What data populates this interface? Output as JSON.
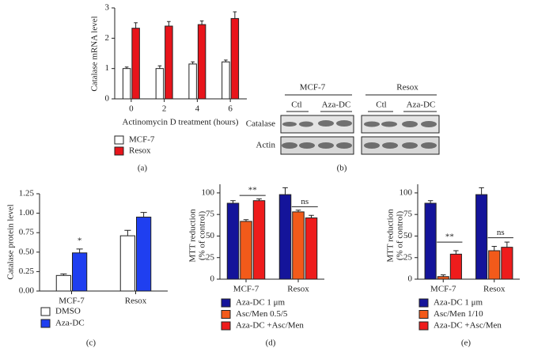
{
  "chart_data": [
    {
      "type": "bar",
      "panel_label": "(a)",
      "ylabel": "Catalase mRNA level",
      "xlabel": "Actinomycin D treatment (hours)",
      "categories": [
        "0",
        "2",
        "4",
        "6"
      ],
      "series": [
        {
          "name": "MCF-7",
          "color": "#ffffff",
          "values": [
            1.0,
            1.0,
            1.15,
            1.22
          ],
          "errors": [
            0.05,
            0.09,
            0.07,
            0.06
          ]
        },
        {
          "name": "Resox",
          "color": "#e8141b",
          "values": [
            2.33,
            2.4,
            2.45,
            2.65
          ],
          "errors": [
            0.18,
            0.15,
            0.12,
            0.22
          ]
        }
      ],
      "ylim": [
        0,
        3
      ],
      "yticks": [
        0,
        1,
        2,
        3
      ]
    },
    {
      "type": "bar",
      "panel_label": "(c)",
      "ylabel": "Catalase protein level",
      "categories": [
        "MCF-7",
        "Resox"
      ],
      "series": [
        {
          "name": "DMSO",
          "color": "#ffffff",
          "values": [
            0.2,
            0.71
          ],
          "errors": [
            0.02,
            0.07
          ]
        },
        {
          "name": "Aza-DC",
          "color": "#1f3ff0",
          "values": [
            0.49,
            0.95
          ],
          "errors": [
            0.05,
            0.06
          ]
        }
      ],
      "ylim": [
        0,
        1.25
      ],
      "yticks": [
        {
          "value": 0,
          "label": "0.00"
        },
        {
          "value": 0.25,
          "label": "0.25"
        },
        {
          "value": 0.5,
          "label": "0.50"
        },
        {
          "value": 0.75,
          "label": "0.75"
        },
        {
          "value": 1,
          "label": "1.00"
        },
        {
          "value": 1.25,
          "label": "1.25"
        }
      ],
      "annotations": [
        "*"
      ]
    },
    {
      "type": "bar",
      "panel_label": "(d)",
      "ylabel": [
        "MTT reduction",
        "(% of control)"
      ],
      "categories": [
        "MCF-7",
        "Resox"
      ],
      "series": [
        {
          "name": "Aza-DC 1 μm",
          "color": "#14149a",
          "values": [
            88,
            98
          ],
          "errors": [
            3,
            8
          ]
        },
        {
          "name": "Asc/Men 0.5/5",
          "color": "#f25a1a",
          "values": [
            67,
            78
          ],
          "errors": [
            2,
            2
          ]
        },
        {
          "name": "Aza-DC +Asc/Men",
          "color": "#ee1c1c",
          "values": [
            91,
            71
          ],
          "errors": [
            2,
            3
          ]
        }
      ],
      "ylim": [
        0,
        110
      ],
      "yticks": [
        0,
        25,
        50,
        75,
        100
      ],
      "annotations": [
        "**",
        "ns"
      ]
    },
    {
      "type": "bar",
      "panel_label": "(e)",
      "ylabel": [
        "MTT reduction",
        "(% of control)"
      ],
      "categories": [
        "MCF-7",
        "Resox"
      ],
      "series": [
        {
          "name": "Aza-DC 1 μm",
          "color": "#14149a",
          "values": [
            88,
            98
          ],
          "errors": [
            3,
            8
          ]
        },
        {
          "name": "Asc/Men 1/10",
          "color": "#f25a1a",
          "values": [
            3,
            33
          ],
          "errors": [
            2,
            5
          ]
        },
        {
          "name": "Aza-DC +Asc/Men",
          "color": "#ee1c1c",
          "values": [
            29,
            37
          ],
          "errors": [
            4,
            6
          ]
        }
      ],
      "ylim": [
        0,
        110
      ],
      "yticks": [
        0,
        25,
        50,
        75,
        100
      ],
      "annotations": [
        "**",
        "ns"
      ]
    }
  ],
  "blot": {
    "panel_label": "(b)",
    "groups": [
      {
        "name": "MCF-7",
        "lanes": [
          "Ctl",
          "Aza-DC"
        ]
      },
      {
        "name": "Resox",
        "lanes": [
          "Ctl",
          "Aza-DC"
        ]
      }
    ],
    "rows": [
      "Catalase",
      "Actin"
    ]
  }
}
